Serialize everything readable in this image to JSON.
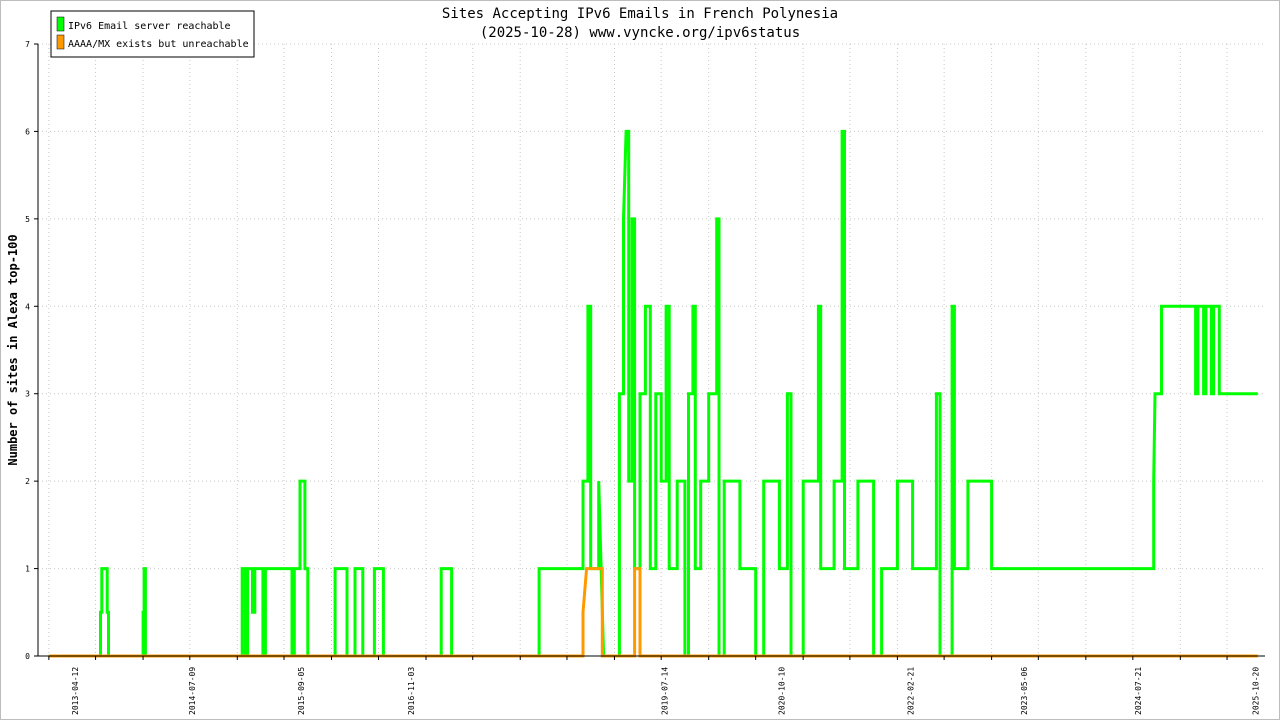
{
  "chart_data": {
    "type": "line",
    "title": "Sites Accepting IPv6 Emails in French Polynesia",
    "subtitle": "(2025-10-28) www.vyncke.org/ipv6status",
    "ylabel": "Number of sites in Alexa top-100",
    "xlabel": "",
    "ylim": [
      0,
      7
    ],
    "xlim": [
      "2012-11-20",
      "2025-11-25"
    ],
    "grid": true,
    "legend_position": "top-left",
    "y_ticks": [
      "0",
      "1",
      "2",
      "3",
      "4",
      "5",
      "6",
      "7"
    ],
    "x_ticks": [
      "2013-04-12",
      "2014-07-09",
      "2015-09-05",
      "2016-11-03",
      "2019-07-14",
      "2020-10-10",
      "2022-02-21",
      "2023-05-06",
      "2024-07-21",
      "2025-10-20"
    ],
    "series": [
      {
        "name": "IPv6 Email server reachable",
        "color": "#00ff00",
        "points": [
          [
            "2013-01-01",
            0
          ],
          [
            "2013-07-20",
            0
          ],
          [
            "2013-07-20",
            0.5
          ],
          [
            "2013-07-25",
            0.5
          ],
          [
            "2013-07-25",
            1
          ],
          [
            "2013-08-15",
            1
          ],
          [
            "2013-08-15",
            0.5
          ],
          [
            "2013-08-20",
            0.5
          ],
          [
            "2013-08-20",
            0
          ],
          [
            "2014-01-01",
            0
          ],
          [
            "2014-01-01",
            0.5
          ],
          [
            "2014-01-05",
            0.5
          ],
          [
            "2014-01-05",
            1
          ],
          [
            "2014-01-10",
            1
          ],
          [
            "2014-01-10",
            0
          ],
          [
            "2015-01-20",
            0
          ],
          [
            "2015-01-20",
            1
          ],
          [
            "2015-02-01",
            1
          ],
          [
            "2015-02-01",
            0
          ],
          [
            "2015-02-10",
            0
          ],
          [
            "2015-02-10",
            1
          ],
          [
            "2015-03-01",
            1
          ],
          [
            "2015-03-01",
            0.5
          ],
          [
            "2015-03-10",
            0.5
          ],
          [
            "2015-03-10",
            1
          ],
          [
            "2015-04-10",
            1
          ],
          [
            "2015-04-10",
            0
          ],
          [
            "2015-04-20",
            0
          ],
          [
            "2015-04-20",
            1
          ],
          [
            "2015-08-01",
            1
          ],
          [
            "2015-08-01",
            0
          ],
          [
            "2015-08-10",
            0
          ],
          [
            "2015-08-10",
            1
          ],
          [
            "2015-09-01",
            1
          ],
          [
            "2015-09-01",
            2
          ],
          [
            "2015-09-20",
            2
          ],
          [
            "2015-09-20",
            1
          ],
          [
            "2015-10-01",
            1
          ],
          [
            "2015-10-01",
            0
          ],
          [
            "2016-01-15",
            0
          ],
          [
            "2016-01-15",
            1
          ],
          [
            "2016-03-01",
            1
          ],
          [
            "2016-03-01",
            0
          ],
          [
            "2016-04-01",
            0
          ],
          [
            "2016-04-01",
            1
          ],
          [
            "2016-05-01",
            1
          ],
          [
            "2016-05-01",
            0
          ],
          [
            "2016-06-15",
            0
          ],
          [
            "2016-06-15",
            1
          ],
          [
            "2016-07-20",
            1
          ],
          [
            "2016-07-20",
            0
          ],
          [
            "2017-03-01",
            0
          ],
          [
            "2017-03-01",
            1
          ],
          [
            "2017-04-10",
            1
          ],
          [
            "2017-04-10",
            0
          ],
          [
            "2018-03-15",
            0
          ],
          [
            "2018-03-15",
            1
          ],
          [
            "2018-09-01",
            1
          ],
          [
            "2018-09-01",
            2
          ],
          [
            "2018-09-20",
            2
          ],
          [
            "2018-09-20",
            4
          ],
          [
            "2018-10-01",
            4
          ],
          [
            "2018-10-01",
            1
          ],
          [
            "2018-11-01",
            1
          ],
          [
            "2018-11-01",
            2
          ],
          [
            "2018-11-20",
            0
          ],
          [
            "2019-01-20",
            0
          ],
          [
            "2019-01-20",
            3
          ],
          [
            "2019-02-05",
            3
          ],
          [
            "2019-02-05",
            5
          ],
          [
            "2019-02-15",
            6
          ],
          [
            "2019-02-25",
            6
          ],
          [
            "2019-02-25",
            2
          ],
          [
            "2019-03-10",
            2
          ],
          [
            "2019-03-10",
            5
          ],
          [
            "2019-03-20",
            5
          ],
          [
            "2019-03-20",
            1
          ],
          [
            "2019-04-10",
            1
          ],
          [
            "2019-04-10",
            3
          ],
          [
            "2019-05-01",
            3
          ],
          [
            "2019-05-01",
            4
          ],
          [
            "2019-05-20",
            4
          ],
          [
            "2019-05-20",
            1
          ],
          [
            "2019-06-10",
            1
          ],
          [
            "2019-06-10",
            3
          ],
          [
            "2019-07-01",
            3
          ],
          [
            "2019-07-01",
            2
          ],
          [
            "2019-07-20",
            2
          ],
          [
            "2019-07-20",
            4
          ],
          [
            "2019-08-01",
            4
          ],
          [
            "2019-08-01",
            1
          ],
          [
            "2019-09-01",
            1
          ],
          [
            "2019-09-01",
            2
          ],
          [
            "2019-10-01",
            2
          ],
          [
            "2019-10-01",
            0
          ],
          [
            "2019-10-15",
            0
          ],
          [
            "2019-10-15",
            3
          ],
          [
            "2019-11-01",
            3
          ],
          [
            "2019-11-01",
            4
          ],
          [
            "2019-11-10",
            4
          ],
          [
            "2019-11-10",
            1
          ],
          [
            "2019-12-01",
            1
          ],
          [
            "2019-12-01",
            2
          ],
          [
            "2020-01-01",
            2
          ],
          [
            "2020-01-01",
            3
          ],
          [
            "2020-02-01",
            3
          ],
          [
            "2020-02-01",
            5
          ],
          [
            "2020-02-10",
            5
          ],
          [
            "2020-02-10",
            0
          ],
          [
            "2020-03-01",
            0
          ],
          [
            "2020-03-01",
            2
          ],
          [
            "2020-05-01",
            2
          ],
          [
            "2020-05-01",
            1
          ],
          [
            "2020-07-01",
            1
          ],
          [
            "2020-07-01",
            0
          ],
          [
            "2020-08-01",
            0
          ],
          [
            "2020-08-01",
            2
          ],
          [
            "2020-10-01",
            2
          ],
          [
            "2020-10-01",
            1
          ],
          [
            "2020-11-01",
            1
          ],
          [
            "2020-11-01",
            3
          ],
          [
            "2020-11-15",
            3
          ],
          [
            "2020-11-15",
            0
          ],
          [
            "2021-01-01",
            0
          ],
          [
            "2021-01-01",
            2
          ],
          [
            "2021-03-01",
            2
          ],
          [
            "2021-03-01",
            4
          ],
          [
            "2021-03-10",
            4
          ],
          [
            "2021-03-10",
            1
          ],
          [
            "2021-05-01",
            1
          ],
          [
            "2021-05-01",
            2
          ],
          [
            "2021-06-01",
            2
          ],
          [
            "2021-06-01",
            6
          ],
          [
            "2021-06-10",
            6
          ],
          [
            "2021-06-10",
            1
          ],
          [
            "2021-08-01",
            1
          ],
          [
            "2021-08-01",
            2
          ],
          [
            "2021-10-01",
            2
          ],
          [
            "2021-10-01",
            0
          ],
          [
            "2021-11-01",
            0
          ],
          [
            "2021-11-01",
            1
          ],
          [
            "2022-01-01",
            1
          ],
          [
            "2022-01-01",
            2
          ],
          [
            "2022-03-01",
            2
          ],
          [
            "2022-03-01",
            1
          ],
          [
            "2022-06-01",
            1
          ],
          [
            "2022-06-01",
            3
          ],
          [
            "2022-06-15",
            3
          ],
          [
            "2022-06-15",
            0
          ],
          [
            "2022-08-01",
            0
          ],
          [
            "2022-08-01",
            4
          ],
          [
            "2022-08-10",
            4
          ],
          [
            "2022-08-10",
            1
          ],
          [
            "2022-10-01",
            1
          ],
          [
            "2022-10-01",
            2
          ],
          [
            "2023-01-01",
            2
          ],
          [
            "2023-01-01",
            1
          ],
          [
            "2023-03-20",
            1
          ],
          [
            "2024-09-20",
            1
          ],
          [
            "2024-09-20",
            2
          ],
          [
            "2024-09-25",
            3
          ],
          [
            "2024-10-20",
            3
          ],
          [
            "2024-10-20",
            4
          ],
          [
            "2025-03-01",
            4
          ],
          [
            "2025-03-01",
            3
          ],
          [
            "2025-03-10",
            3
          ],
          [
            "2025-03-10",
            4
          ],
          [
            "2025-04-01",
            4
          ],
          [
            "2025-04-01",
            3
          ],
          [
            "2025-04-10",
            3
          ],
          [
            "2025-04-10",
            4
          ],
          [
            "2025-05-01",
            4
          ],
          [
            "2025-05-01",
            3
          ],
          [
            "2025-05-10",
            3
          ],
          [
            "2025-05-10",
            4
          ],
          [
            "2025-06-01",
            4
          ],
          [
            "2025-06-01",
            3
          ],
          [
            "2025-10-28",
            3
          ]
        ]
      },
      {
        "name": "AAAA/MX exists but unreachable",
        "color": "#ff9900",
        "points": [
          [
            "2013-01-01",
            0
          ],
          [
            "2018-09-01",
            0
          ],
          [
            "2018-09-01",
            0.5
          ],
          [
            "2018-09-15",
            1
          ],
          [
            "2018-11-15",
            1
          ],
          [
            "2018-11-15",
            0
          ],
          [
            "2019-03-20",
            0
          ],
          [
            "2019-03-20",
            1
          ],
          [
            "2019-04-10",
            1
          ],
          [
            "2019-04-10",
            0
          ],
          [
            "2025-10-28",
            0
          ]
        ]
      }
    ]
  }
}
